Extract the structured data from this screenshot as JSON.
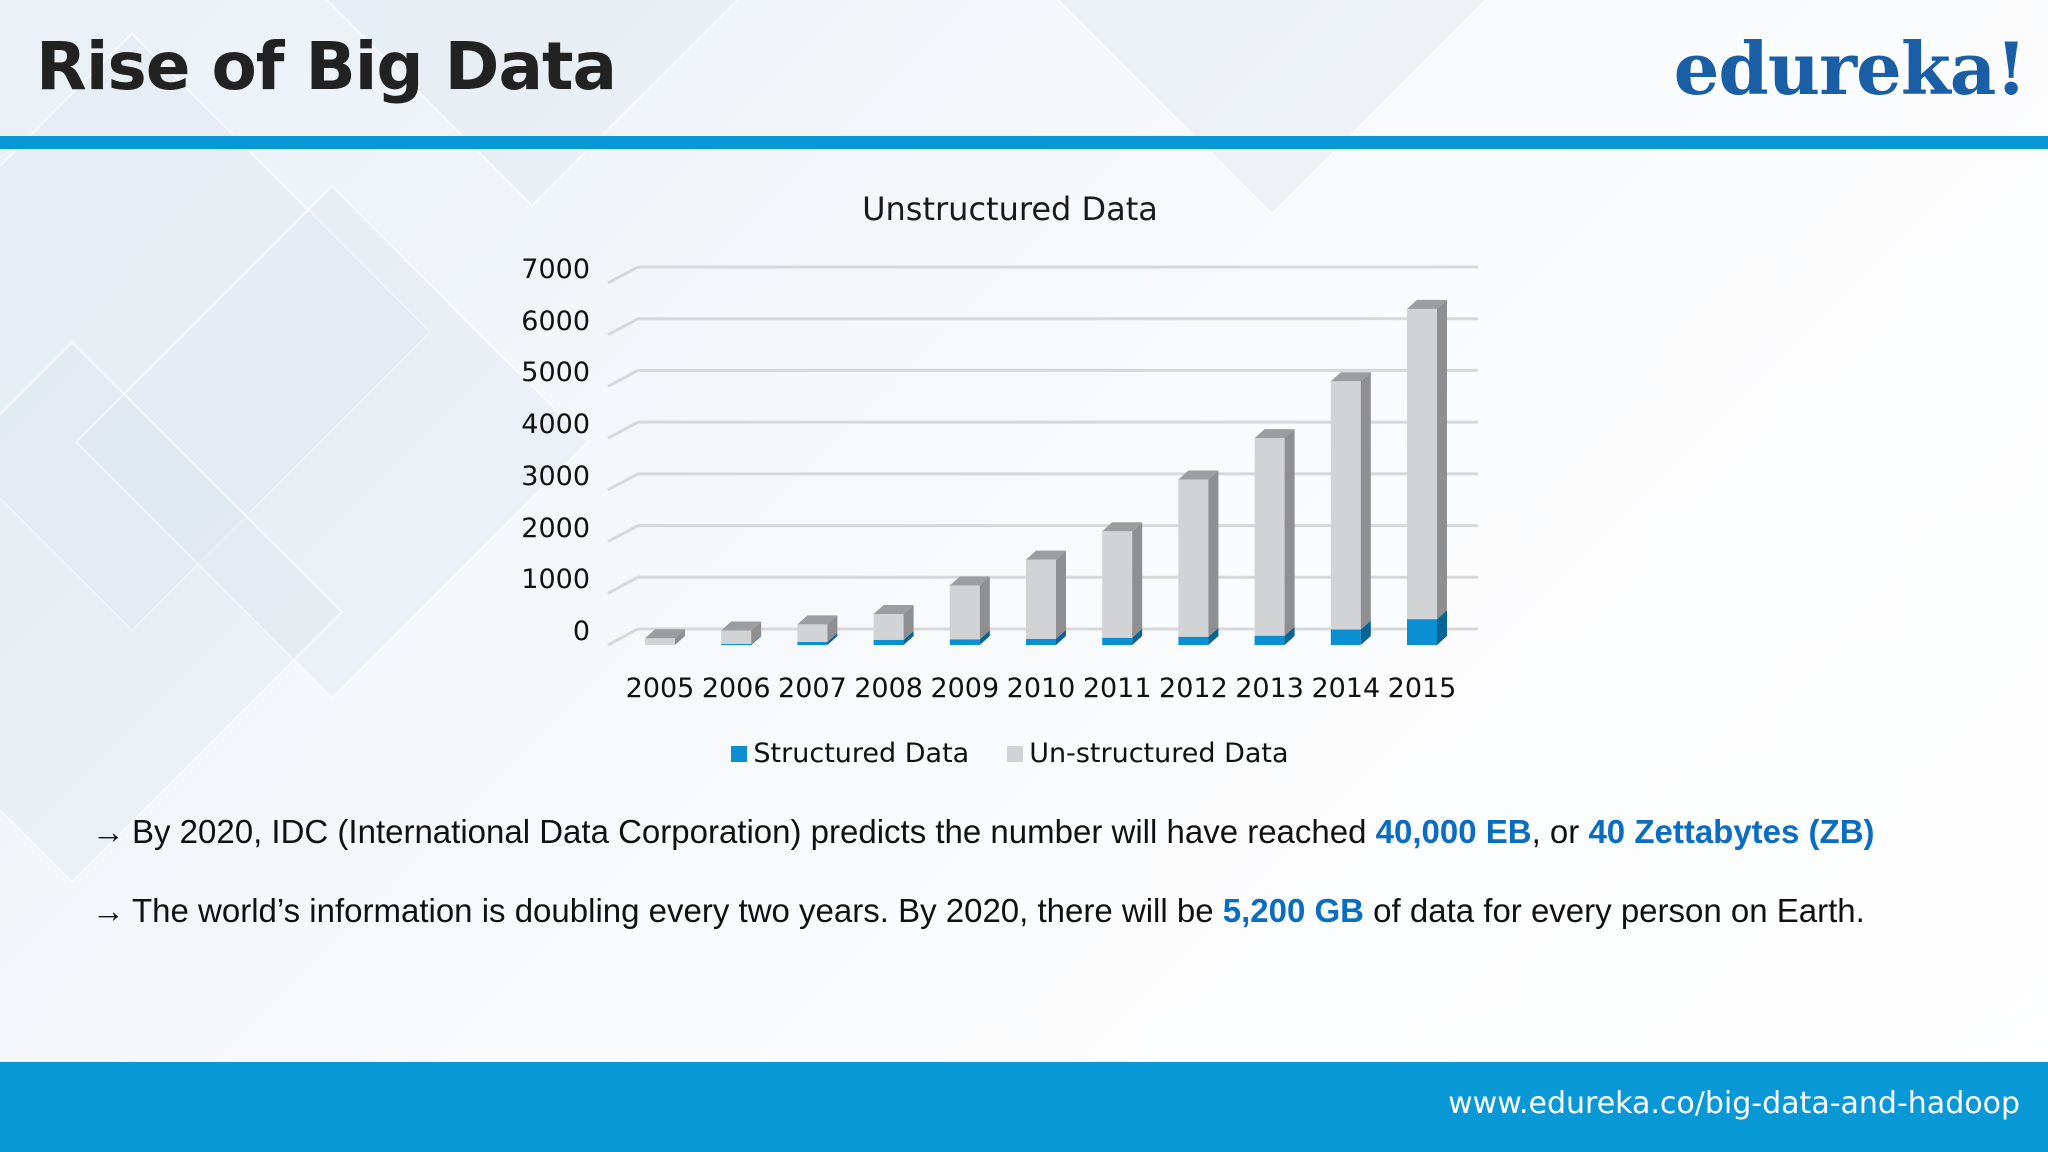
{
  "slide": {
    "title": "Rise of Big Data",
    "logo": "edureka!",
    "footer_url": "www.edureka.co/big-data-and-hadoop",
    "colors": {
      "accent": "#0898d6",
      "logo": "#1a5ea6",
      "highlight": "#0a6dc2"
    }
  },
  "bullets": [
    {
      "arrow": "→",
      "parts": [
        {
          "text": "By 2020, IDC (International Data Corporation) predicts the number will have reached  ",
          "highlight": false
        },
        {
          "text": "40,000 EB",
          "highlight": true
        },
        {
          "text": ", or ",
          "highlight": false
        },
        {
          "text": "40 Zettabytes (ZB)",
          "highlight": true
        }
      ]
    },
    {
      "arrow": "→",
      "parts": [
        {
          "text": "The world’s information is doubling every two years.  By 2020, there will be ",
          "highlight": false
        },
        {
          "text": "5,200 GB",
          "highlight": true
        },
        {
          "text": " of data for every person on Earth.",
          "highlight": false
        }
      ]
    }
  ],
  "chart_data": {
    "type": "bar",
    "stacked": true,
    "style": "3d-column",
    "title": "Unstructured Data",
    "xlabel": "",
    "ylabel": "",
    "ylim": [
      0,
      7000
    ],
    "yticks": [
      "0",
      "1000",
      "2000",
      "3000",
      "4000",
      "5000",
      "6000",
      "7000"
    ],
    "grid": true,
    "legend_position": "bottom",
    "categories": [
      "2005",
      "2006",
      "2007",
      "2008",
      "2009",
      "2010",
      "2011",
      "2012",
      "2013",
      "2014",
      "2015"
    ],
    "series": [
      {
        "name": "Structured Data",
        "color": "#0a8fd3",
        "values": [
          0,
          20,
          60,
          100,
          110,
          120,
          140,
          160,
          180,
          300,
          500
        ]
      },
      {
        "name": "Un-structured Data",
        "color": "#d2d3d4",
        "values": [
          130,
          260,
          340,
          500,
          1040,
          1530,
          2060,
          3040,
          3820,
          4800,
          6000
        ]
      }
    ]
  }
}
